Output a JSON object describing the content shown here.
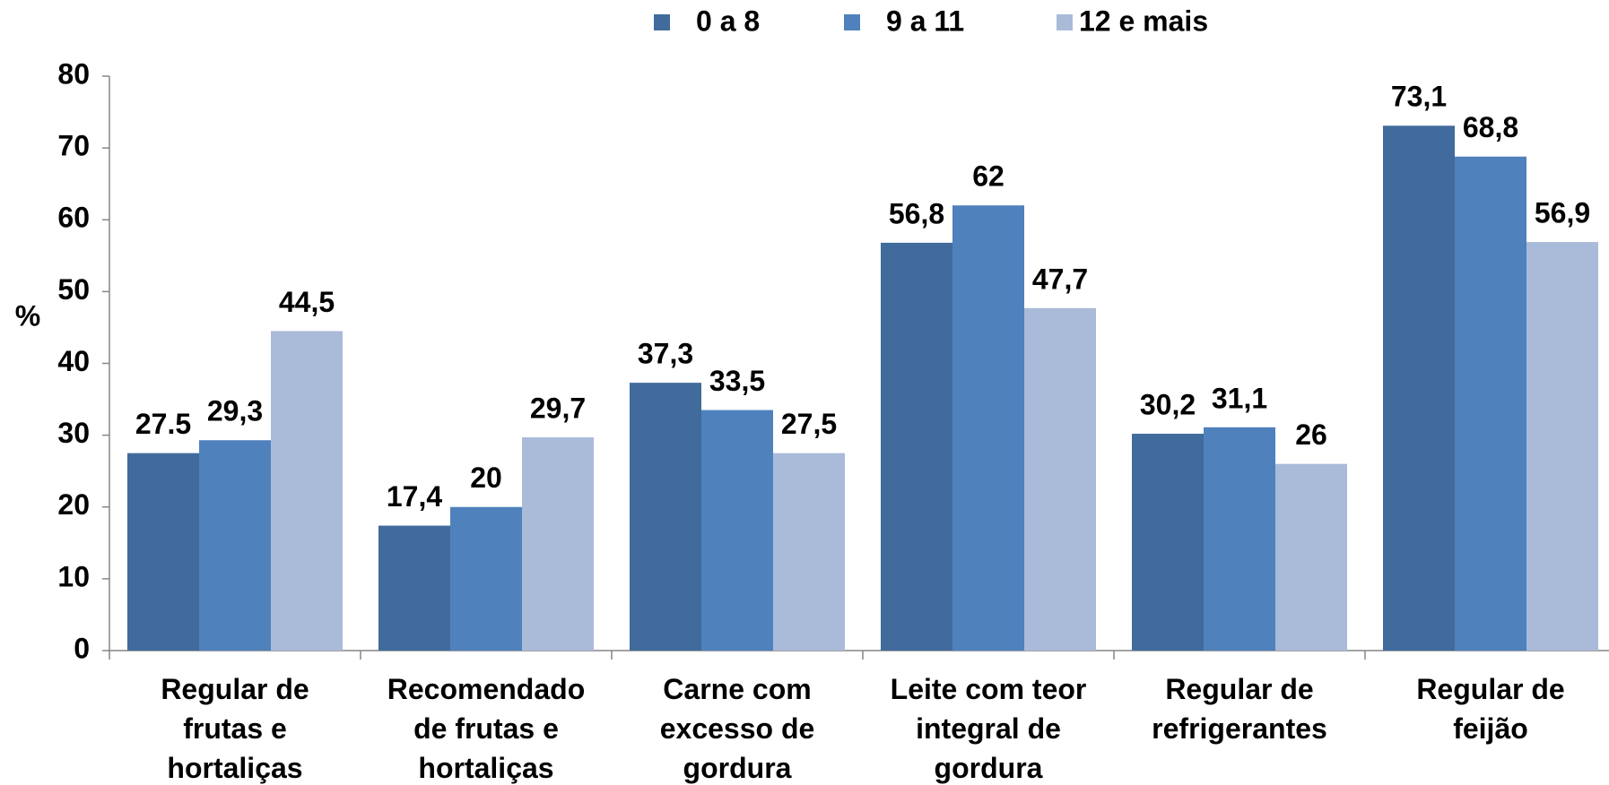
{
  "chart_data": {
    "type": "bar",
    "y_label": "%",
    "categories": [
      [
        "Regular de",
        "frutas e",
        "hortaliças"
      ],
      [
        "Recomendado",
        "de frutas e",
        "hortaliças"
      ],
      [
        "Carne com",
        "excesso de",
        "gordura"
      ],
      [
        "Leite com teor",
        "integral de",
        "gordura"
      ],
      [
        "Regular de",
        "refrigerantes"
      ],
      [
        "Regular de",
        "feijão"
      ]
    ],
    "series": [
      {
        "name": "0 a 8",
        "color": "#416b9c",
        "values": [
          27.5,
          17.4,
          37.3,
          56.8,
          30.2,
          73.1
        ],
        "value_labels": [
          "27.5",
          "17,4",
          "37,3",
          "56,8",
          "30,2",
          "73,1"
        ]
      },
      {
        "name": "9 a 11",
        "color": "#4f81bd",
        "values": [
          29.3,
          20,
          33.5,
          62,
          31.1,
          68.8
        ],
        "value_labels": [
          "29,3",
          "20",
          "33,5",
          "62",
          "31,1",
          "68,8"
        ]
      },
      {
        "name": "12 e mais",
        "color": "#aabbd9",
        "values": [
          44.5,
          29.7,
          27.5,
          47.7,
          26,
          56.9
        ],
        "value_labels": [
          "44,5",
          "29,7",
          "27,5",
          "47,7",
          "26",
          "56,9"
        ]
      }
    ],
    "ylim": [
      0,
      80
    ],
    "yticks": [
      0,
      10,
      20,
      30,
      40,
      50,
      60,
      70,
      80
    ],
    "grid": false,
    "legend": "top"
  }
}
